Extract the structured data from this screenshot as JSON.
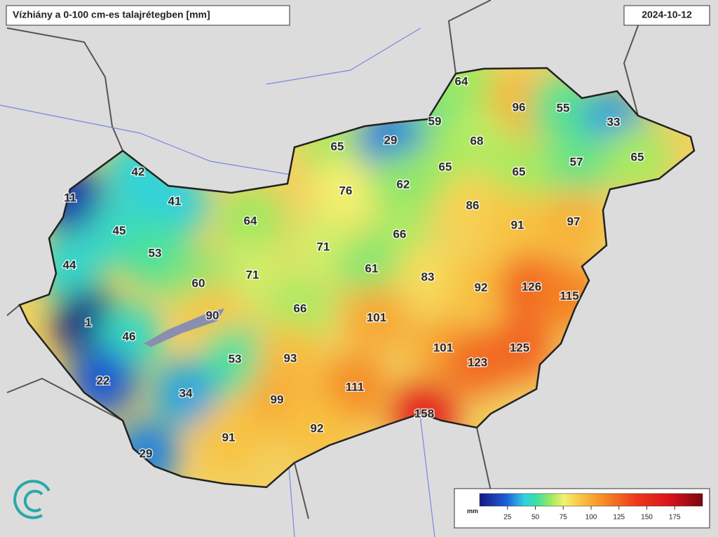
{
  "header": {
    "title": "Vízhiány a 0-100 cm-es talajrétegben [mm]",
    "date": "2024-10-12"
  },
  "map": {
    "labels": [
      64,
      96,
      55,
      33,
      59,
      65,
      29,
      68,
      57,
      65,
      42,
      65,
      65,
      11,
      41,
      76,
      62,
      86,
      64,
      45,
      91,
      97,
      66,
      71,
      53,
      44,
      71,
      61,
      83,
      60,
      92,
      126,
      115,
      66,
      90,
      101,
      1,
      46,
      101,
      125,
      53,
      93,
      123,
      22,
      111,
      34,
      99,
      158,
      92,
      91,
      29
    ]
  },
  "legend": {
    "unit": "mm",
    "range": [
      0,
      200
    ],
    "ticks": [
      25,
      50,
      75,
      100,
      125,
      150,
      175
    ]
  }
}
